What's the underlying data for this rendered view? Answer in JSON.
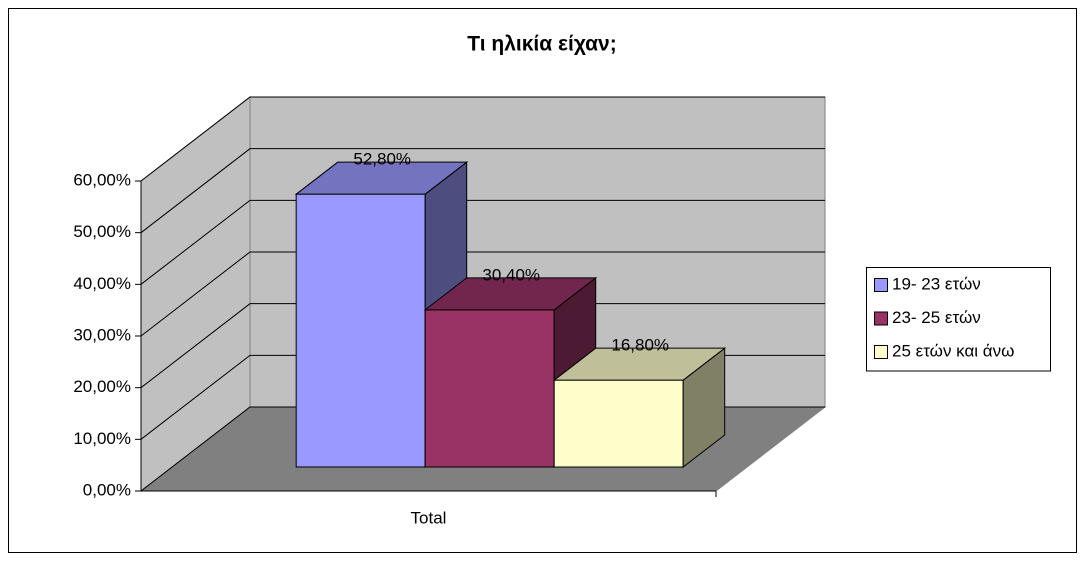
{
  "chart_data": {
    "type": "bar",
    "title": "Τι ηλικία είχαν;",
    "categories": [
      "Total"
    ],
    "series": [
      {
        "name": "19- 23 ετών",
        "color": "#9999ff",
        "values": [
          52.8
        ],
        "value_labels": [
          "52,80%"
        ]
      },
      {
        "name": "23- 25 ετών",
        "color": "#993366",
        "values": [
          30.4
        ],
        "value_labels": [
          "30,40%"
        ]
      },
      {
        "name": "25 ετών και άνω",
        "color": "#ffffcc",
        "values": [
          16.8
        ],
        "value_labels": [
          "16,80%"
        ]
      }
    ],
    "ylim": [
      0,
      60
    ],
    "yticks": [
      {
        "value": 0,
        "label": "0,00%"
      },
      {
        "value": 10,
        "label": "10,00%"
      },
      {
        "value": 20,
        "label": "20,00%"
      },
      {
        "value": 30,
        "label": "30,00%"
      },
      {
        "value": 40,
        "label": "40,00%"
      },
      {
        "value": 50,
        "label": "50,00%"
      },
      {
        "value": 60,
        "label": "60,00%"
      }
    ],
    "grid": true,
    "legend": "right",
    "wall_color": "#c0c0c0",
    "floor_color": "#808080"
  }
}
